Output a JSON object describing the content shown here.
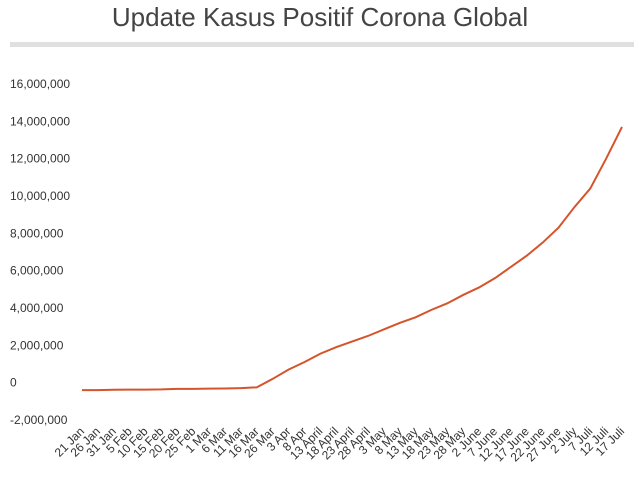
{
  "chart_data": {
    "type": "line",
    "title": "Update Kasus Positif Corona Global",
    "categories": [
      "21 Jan",
      "26 Jan",
      "31 Jan",
      "5 Feb",
      "10 Feb",
      "15 Feb",
      "20 Feb",
      "25 Feb",
      "1 Mar",
      "6 Mar",
      "11 Mar",
      "16 Mar",
      "26 Mar",
      "3 Apr",
      "8 Apr",
      "13 April",
      "18 April",
      "23 April",
      "28 April",
      "3 May",
      "8 May",
      "13 May",
      "18 May",
      "23 May",
      "28 May",
      "2 June",
      "7 June",
      "12 June",
      "17 June",
      "22 June",
      "27 June",
      "2 July",
      "7 Juli",
      "12 Juli",
      "17 Juli"
    ],
    "series": [
      {
        "color": "#d4542b",
        "values": [
          -400000,
          -400000,
          -380000,
          -370000,
          -370000,
          -360000,
          -330000,
          -330000,
          -320000,
          -310000,
          -290000,
          -250000,
          200000,
          700000,
          1100000,
          1550000,
          1900000,
          2200000,
          2500000,
          2850000,
          3200000,
          3500000,
          3900000,
          4250000,
          4700000,
          5100000,
          5600000,
          6200000,
          6800000,
          7500000,
          8300000,
          9400000,
          10400000,
          12000000,
          13700000
        ]
      }
    ],
    "ylim": [
      -2000000,
      16000000
    ],
    "yticks": [
      {
        "value": -2000000,
        "label": "-2,000,000"
      },
      0,
      {
        "value": 2000000,
        "label": "2,000,000"
      },
      {
        "value": 4000000,
        "label": "4,000,000"
      },
      {
        "value": 6000000,
        "label": "6,000,000"
      },
      {
        "value": 8000000,
        "label": "8,000,000"
      },
      {
        "value": 10000000,
        "label": "10,000,000"
      },
      {
        "value": 12000000,
        "label": "12,000,000"
      },
      {
        "value": 14000000,
        "label": "14,000,000"
      },
      {
        "value": 16000000,
        "label": "16,000,000"
      }
    ],
    "grid": false
  }
}
